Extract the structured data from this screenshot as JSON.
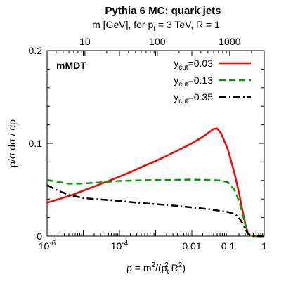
{
  "chart_data": {
    "type": "line",
    "title": "Pythia 6 MC: quark jets",
    "top_axis": {
      "label_pre": "m [GeV], for p",
      "label_sub": "t",
      "label_post": " = 3 TeV, R = 1",
      "ticks": [
        {
          "value": 10,
          "label": "10"
        },
        {
          "value": 100,
          "label": "100"
        },
        {
          "value": 1000,
          "label": "1000"
        }
      ]
    },
    "xlabel": {
      "prefix": "ρ = m",
      "sup1": "2",
      "mid": "/(p",
      "sub": "t",
      "sup2": "2",
      "mid2": " R",
      "sup3": "2",
      "suffix": ")"
    },
    "ylabel": "ρ/σ dσ / dρ",
    "xscale": "log",
    "xlim": [
      1e-06,
      1
    ],
    "ylim": [
      0,
      0.2
    ],
    "x_ticks": [
      {
        "value": 1e-06,
        "base": "10",
        "exp": "-6"
      },
      {
        "value": 0.0001,
        "base": "10",
        "exp": "-4"
      },
      {
        "value": 0.01,
        "label": "0.01"
      },
      {
        "value": 0.1,
        "label": "0.1"
      },
      {
        "value": 1,
        "label": "1"
      }
    ],
    "y_ticks": [
      {
        "value": 0,
        "label": "0"
      },
      {
        "value": 0.1,
        "label": "0.1"
      },
      {
        "value": 0.2,
        "label": "0.2"
      }
    ],
    "annotation": "mMDT",
    "legend_position": "top-right",
    "series": [
      {
        "label_base": "y",
        "label_sub": "cut",
        "label_value": "=0.03",
        "color": "#ff0000",
        "dash": "solid",
        "points": [
          [
            1e-06,
            0.036
          ],
          [
            2e-06,
            0.0395
          ],
          [
            5e-06,
            0.0445
          ],
          [
            1e-05,
            0.049
          ],
          [
            2e-05,
            0.0535
          ],
          [
            5e-05,
            0.0595
          ],
          [
            0.0001,
            0.064
          ],
          [
            0.0002,
            0.069
          ],
          [
            0.0005,
            0.076
          ],
          [
            0.001,
            0.081
          ],
          [
            0.002,
            0.0865
          ],
          [
            0.005,
            0.094
          ],
          [
            0.01,
            0.1
          ],
          [
            0.02,
            0.107
          ],
          [
            0.03,
            0.112
          ],
          [
            0.04,
            0.1155
          ],
          [
            0.05,
            0.116
          ],
          [
            0.065,
            0.1105
          ],
          [
            0.1,
            0.093
          ],
          [
            0.15,
            0.068
          ],
          [
            0.2,
            0.047
          ],
          [
            0.25,
            0.028
          ],
          [
            0.3,
            0.013
          ],
          [
            0.35,
            0.004
          ],
          [
            0.4,
            0.001
          ],
          [
            0.5,
            0.0
          ],
          [
            1,
            0.0
          ]
        ]
      },
      {
        "label_base": "y",
        "label_sub": "cut",
        "label_value": "=0.13",
        "color": "#00a000",
        "dash": "dashed",
        "points": [
          [
            1e-06,
            0.0605
          ],
          [
            2e-06,
            0.0585
          ],
          [
            4e-06,
            0.0565
          ],
          [
            8e-06,
            0.0565
          ],
          [
            2e-05,
            0.0575
          ],
          [
            5e-05,
            0.0585
          ],
          [
            0.0001,
            0.0595
          ],
          [
            0.0003,
            0.06
          ],
          [
            0.001,
            0.0605
          ],
          [
            0.003,
            0.0605
          ],
          [
            0.01,
            0.061
          ],
          [
            0.03,
            0.0605
          ],
          [
            0.06,
            0.06
          ],
          [
            0.1,
            0.058
          ],
          [
            0.15,
            0.05
          ],
          [
            0.2,
            0.038
          ],
          [
            0.25,
            0.025
          ],
          [
            0.3,
            0.012
          ],
          [
            0.35,
            0.004
          ],
          [
            0.4,
            0.001
          ],
          [
            0.5,
            0.0
          ],
          [
            1,
            0.0
          ]
        ]
      },
      {
        "label_base": "y",
        "label_sub": "cut",
        "label_value": "=0.35",
        "color": "#000000",
        "dash": "dashdot",
        "points": [
          [
            1e-06,
            0.055
          ],
          [
            2e-06,
            0.049
          ],
          [
            4e-06,
            0.0445
          ],
          [
            1e-05,
            0.041
          ],
          [
            3e-05,
            0.0395
          ],
          [
            0.0001,
            0.038
          ],
          [
            0.0003,
            0.036
          ],
          [
            0.001,
            0.0345
          ],
          [
            0.003,
            0.033
          ],
          [
            0.01,
            0.031
          ],
          [
            0.03,
            0.029
          ],
          [
            0.1,
            0.026
          ],
          [
            0.15,
            0.024
          ],
          [
            0.2,
            0.02
          ],
          [
            0.25,
            0.014
          ],
          [
            0.3,
            0.008
          ],
          [
            0.35,
            0.003
          ],
          [
            0.4,
            0.001
          ],
          [
            0.5,
            0.0
          ],
          [
            1,
            0.0
          ]
        ]
      }
    ]
  }
}
